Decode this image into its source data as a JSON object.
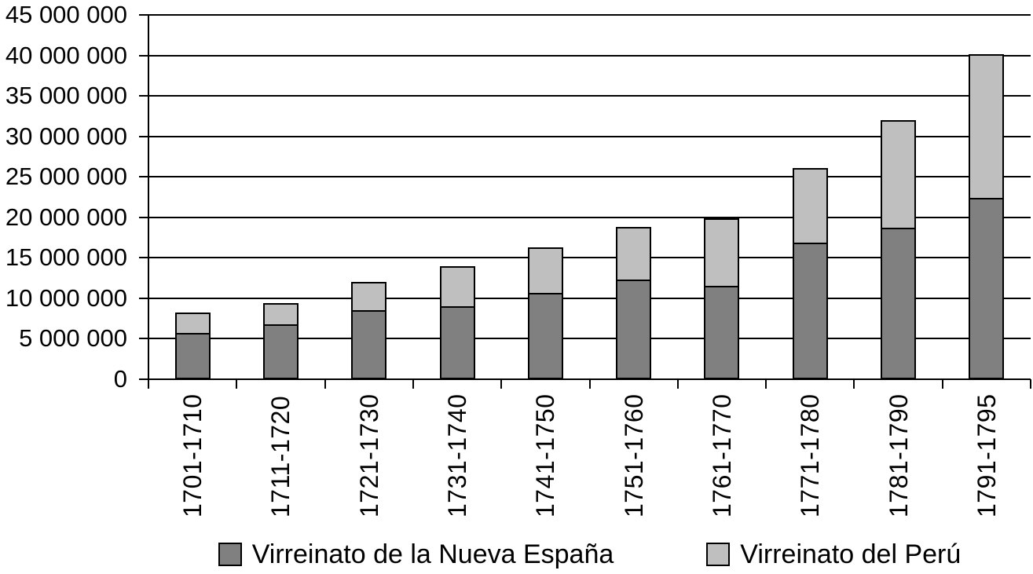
{
  "chart_data": {
    "type": "bar",
    "stacked": true,
    "title": "",
    "xlabel": "",
    "ylabel": "",
    "categories": [
      "1701-1710",
      "1711-1720",
      "1721-1730",
      "1731-1740",
      "1741-1750",
      "1751-1760",
      "1761-1770",
      "1771-1780",
      "1781-1790",
      "1791-1795"
    ],
    "series": [
      {
        "name": "Virreinato de la Nueva España",
        "color": "#808080",
        "values": [
          5700000,
          6800000,
          8500000,
          9000000,
          10700000,
          12300000,
          11500000,
          16900000,
          18700000,
          22400000
        ]
      },
      {
        "name": "Virreinato del Perú",
        "color": "#bfbfbf",
        "values": [
          2500000,
          2600000,
          3500000,
          5000000,
          5600000,
          6500000,
          8400000,
          9200000,
          13300000,
          17800000
        ]
      }
    ],
    "ylim": [
      0,
      45000000
    ],
    "ytick_step": 5000000,
    "ytick_labels": [
      "0",
      "5 000 000",
      "10 000 000",
      "15 000 000",
      "20 000 000",
      "25 000 000",
      "30 000 000",
      "35 000 000",
      "40 000 000",
      "45 000 000"
    ],
    "grid": true,
    "legend_position": "bottom",
    "axis_color": "#000000",
    "background": "#ffffff"
  }
}
